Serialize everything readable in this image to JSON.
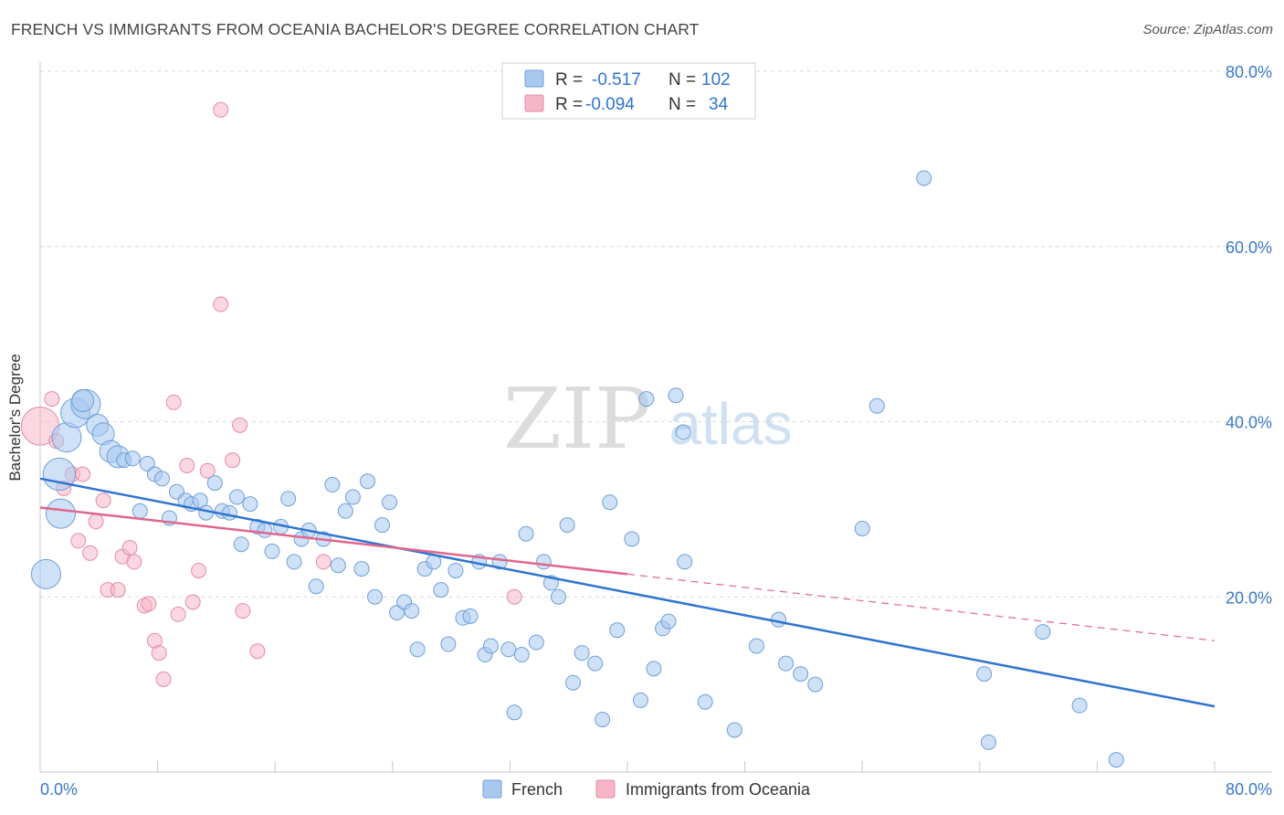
{
  "header": {
    "title": "FRENCH VS IMMIGRANTS FROM OCEANIA BACHELOR'S DEGREE CORRELATION CHART",
    "source": "Source: ZipAtlas.com"
  },
  "watermark": {
    "zip": "ZIP",
    "atlas": "atlas"
  },
  "legend_stats": [
    {
      "r_label": "R =",
      "r_value": "-0.517",
      "n_label": "N =",
      "n_value": "102",
      "color": "#a8c8f0"
    },
    {
      "r_label": "R =",
      "r_value": "-0.094",
      "n_label": "N =",
      "n_value": "34",
      "color": "#f6b6c8"
    }
  ],
  "bottom_legend": [
    {
      "label": "French",
      "color": "#a8c8f0"
    },
    {
      "label": "Immigrants from Oceania",
      "color": "#f6b6c8"
    }
  ],
  "chart_data": {
    "type": "scatter",
    "title": "FRENCH VS IMMIGRANTS FROM OCEANIA BACHELOR'S DEGREE CORRELATION CHART",
    "xlabel": "",
    "ylabel": "Bachelor's Degree",
    "xlim": [
      0,
      80
    ],
    "ylim": [
      0,
      80
    ],
    "x_tick_labels": [
      "0.0%",
      "80.0%"
    ],
    "y_ticks": [
      20,
      40,
      60,
      80
    ],
    "y_tick_labels": [
      "20.0%",
      "40.0%",
      "60.0%",
      "80.0%"
    ],
    "grid": true,
    "series": [
      {
        "name": "French",
        "color": "#a8c8f0",
        "stroke": "#6f9fd6",
        "line_color": "#2f74d0",
        "trend": {
          "x0": 0,
          "y0": 33.5,
          "x1": 80,
          "y1": 7.5,
          "dashed_from": null
        },
        "points": [
          [
            1.4,
            29.5,
            2
          ],
          [
            0.4,
            22.6,
            2
          ],
          [
            1.3,
            34.0,
            2.2
          ],
          [
            1.8,
            38.2,
            2
          ],
          [
            2.4,
            41.0,
            2
          ],
          [
            3.1,
            42.0,
            2
          ],
          [
            2.9,
            42.4,
            1.5
          ],
          [
            3.9,
            39.6,
            1.5
          ],
          [
            4.3,
            38.6,
            1.5
          ],
          [
            4.8,
            36.6,
            1.5
          ],
          [
            5.3,
            36.0,
            1.5
          ],
          [
            5.7,
            35.6,
            1
          ],
          [
            6.3,
            35.8,
            1
          ],
          [
            6.8,
            29.8,
            1
          ],
          [
            7.3,
            35.2,
            1
          ],
          [
            7.8,
            34.0,
            1
          ],
          [
            8.3,
            33.5,
            1
          ],
          [
            8.8,
            29.0,
            1
          ],
          [
            9.3,
            32.0,
            1
          ],
          [
            9.9,
            31.0,
            1
          ],
          [
            10.3,
            30.6,
            1
          ],
          [
            10.9,
            31.0,
            1
          ],
          [
            11.3,
            29.6,
            1
          ],
          [
            11.9,
            33.0,
            1
          ],
          [
            12.4,
            29.8,
            1
          ],
          [
            12.9,
            29.6,
            1
          ],
          [
            13.4,
            31.4,
            1
          ],
          [
            13.7,
            26.0,
            1
          ],
          [
            14.3,
            30.6,
            1
          ],
          [
            14.8,
            28.0,
            1
          ],
          [
            15.3,
            27.6,
            1
          ],
          [
            15.8,
            25.2,
            1
          ],
          [
            16.4,
            28.0,
            1
          ],
          [
            16.9,
            31.2,
            1
          ],
          [
            17.3,
            24.0,
            1
          ],
          [
            17.8,
            26.6,
            1
          ],
          [
            18.3,
            27.6,
            1
          ],
          [
            18.8,
            21.2,
            1
          ],
          [
            19.3,
            26.6,
            1
          ],
          [
            19.9,
            32.8,
            1
          ],
          [
            20.3,
            23.6,
            1
          ],
          [
            20.8,
            29.8,
            1
          ],
          [
            21.3,
            31.4,
            1
          ],
          [
            21.9,
            23.2,
            1
          ],
          [
            22.3,
            33.2,
            1
          ],
          [
            22.8,
            20.0,
            1
          ],
          [
            23.3,
            28.2,
            1
          ],
          [
            23.8,
            30.8,
            1
          ],
          [
            24.3,
            18.2,
            1
          ],
          [
            24.8,
            19.4,
            1
          ],
          [
            25.3,
            18.4,
            1
          ],
          [
            25.7,
            14.0,
            1
          ],
          [
            26.2,
            23.2,
            1
          ],
          [
            26.8,
            24.0,
            1
          ],
          [
            27.3,
            20.8,
            1
          ],
          [
            27.8,
            14.6,
            1
          ],
          [
            28.3,
            23.0,
            1
          ],
          [
            28.8,
            17.6,
            1
          ],
          [
            29.3,
            17.8,
            1
          ],
          [
            29.9,
            24.0,
            1
          ],
          [
            30.3,
            13.4,
            1
          ],
          [
            30.7,
            14.4,
            1
          ],
          [
            31.3,
            24.0,
            1
          ],
          [
            31.9,
            14.0,
            1
          ],
          [
            32.3,
            6.8,
            1
          ],
          [
            32.8,
            13.4,
            1
          ],
          [
            33.1,
            27.2,
            1
          ],
          [
            33.8,
            14.8,
            1
          ],
          [
            34.3,
            24.0,
            1
          ],
          [
            34.8,
            21.6,
            1
          ],
          [
            35.3,
            20.0,
            1
          ],
          [
            35.9,
            28.2,
            1
          ],
          [
            36.3,
            10.2,
            1
          ],
          [
            36.9,
            13.6,
            1
          ],
          [
            37.8,
            12.4,
            1
          ],
          [
            38.3,
            6.0,
            1
          ],
          [
            38.8,
            30.8,
            1
          ],
          [
            39.3,
            16.2,
            1
          ],
          [
            40.3,
            26.6,
            1
          ],
          [
            40.9,
            8.2,
            1
          ],
          [
            41.3,
            42.6,
            1
          ],
          [
            41.8,
            11.8,
            1
          ],
          [
            42.4,
            16.4,
            1
          ],
          [
            42.8,
            17.2,
            1
          ],
          [
            43.3,
            43.0,
            1
          ],
          [
            43.8,
            38.8,
            1
          ],
          [
            43.9,
            24.0,
            1
          ],
          [
            45.3,
            8.0,
            1
          ],
          [
            47.3,
            4.8,
            1
          ],
          [
            48.8,
            14.4,
            1
          ],
          [
            50.3,
            17.4,
            1
          ],
          [
            50.8,
            12.4,
            1
          ],
          [
            51.8,
            11.2,
            1
          ],
          [
            52.8,
            10.0,
            1
          ],
          [
            56.0,
            27.8,
            1
          ],
          [
            57.0,
            41.8,
            1
          ],
          [
            60.2,
            67.8,
            1
          ],
          [
            64.3,
            11.2,
            1
          ],
          [
            64.6,
            3.4,
            1
          ],
          [
            68.3,
            16.0,
            1
          ],
          [
            70.8,
            7.6,
            1
          ],
          [
            73.3,
            1.4,
            1
          ]
        ]
      },
      {
        "name": "Immigrants from Oceania",
        "color": "#f6b6c8",
        "stroke": "#e48ca6",
        "line_color": "#e0668e",
        "trend": {
          "x0": 0,
          "y0": 30.2,
          "x1": 80,
          "y1": 15.0,
          "dashed_from": 40
        },
        "points": [
          [
            0.0,
            39.5,
            2.6
          ],
          [
            0.8,
            42.6,
            1
          ],
          [
            1.1,
            37.8,
            1
          ],
          [
            1.6,
            32.4,
            1
          ],
          [
            2.2,
            34.0,
            1
          ],
          [
            2.6,
            26.4,
            1
          ],
          [
            2.9,
            34.0,
            1
          ],
          [
            3.4,
            25.0,
            1
          ],
          [
            3.8,
            28.6,
            1
          ],
          [
            4.3,
            31.0,
            1
          ],
          [
            4.6,
            20.8,
            1
          ],
          [
            5.3,
            20.8,
            1
          ],
          [
            5.6,
            24.6,
            1
          ],
          [
            6.1,
            25.6,
            1
          ],
          [
            6.4,
            24.0,
            1
          ],
          [
            7.1,
            19.0,
            1
          ],
          [
            7.4,
            19.2,
            1
          ],
          [
            7.8,
            15.0,
            1
          ],
          [
            8.1,
            13.6,
            1
          ],
          [
            8.4,
            10.6,
            1
          ],
          [
            9.1,
            42.2,
            1
          ],
          [
            9.4,
            18.0,
            1
          ],
          [
            10.0,
            35.0,
            1
          ],
          [
            10.4,
            19.4,
            1
          ],
          [
            10.8,
            23.0,
            1
          ],
          [
            11.4,
            34.4,
            1
          ],
          [
            12.3,
            75.6,
            1
          ],
          [
            12.3,
            53.4,
            1
          ],
          [
            13.1,
            35.6,
            1
          ],
          [
            13.6,
            39.6,
            1
          ],
          [
            13.8,
            18.4,
            1
          ],
          [
            14.8,
            13.8,
            1
          ],
          [
            19.3,
            24.0,
            1
          ],
          [
            32.3,
            20.0,
            1
          ]
        ]
      }
    ]
  }
}
